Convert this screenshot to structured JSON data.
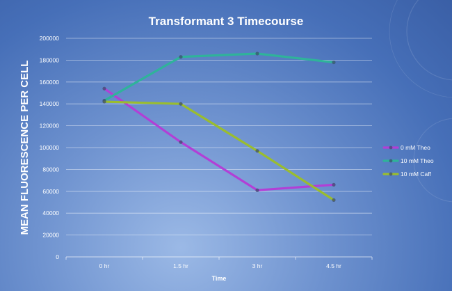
{
  "chart_data": {
    "type": "line",
    "title": "Transformant 3 Timecourse",
    "xlabel": "Time",
    "ylabel": "MEAN FLUORESCENCE PER CELL",
    "categories": [
      "0 hr",
      "1.5 hr",
      "3 hr",
      "4.5 hr"
    ],
    "ylim": [
      0,
      200000
    ],
    "yticks": [
      0,
      20000,
      40000,
      60000,
      80000,
      100000,
      120000,
      140000,
      160000,
      180000,
      200000
    ],
    "grid": true,
    "legend_position": "right",
    "series": [
      {
        "name": "0 mM Theo",
        "color": "#b23fd6",
        "values": [
          154000,
          105000,
          61000,
          66000
        ]
      },
      {
        "name": "10 mM Theo",
        "color": "#2fb39a",
        "values": [
          143000,
          183000,
          186000,
          178000
        ]
      },
      {
        "name": "10 mM Caff",
        "color": "#9abd2e",
        "values": [
          142000,
          140000,
          97000,
          52000
        ]
      }
    ]
  }
}
